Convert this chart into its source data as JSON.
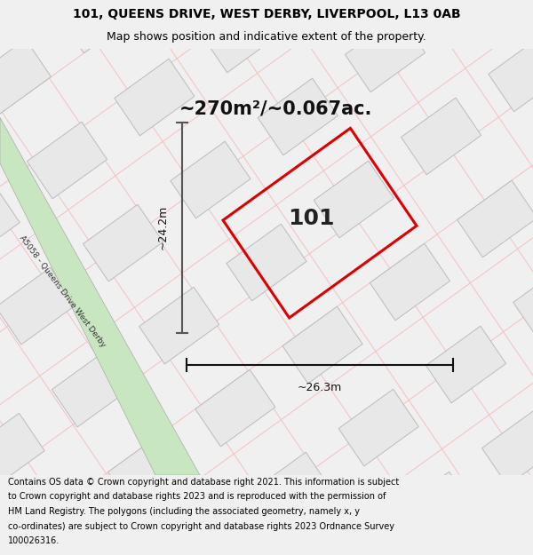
{
  "title_line1": "101, QUEENS DRIVE, WEST DERBY, LIVERPOOL, L13 0AB",
  "title_line2": "Map shows position and indicative extent of the property.",
  "area_label": "~270m²/~0.067ac.",
  "plot_number": "101",
  "dim_width": "~26.3m",
  "dim_height": "~24.2m",
  "road_label": "A5058 - Queens Drive West Derby",
  "footer_text": "Contains OS data © Crown copyright and database right 2021. This information is subject to Crown copyright and database rights 2023 and is reproduced with the permission of HM Land Registry. The polygons (including the associated geometry, namely x, y co-ordinates) are subject to Crown copyright and database rights 2023 Ordnance Survey 100026316.",
  "bg_color": "#f0f0f0",
  "map_bg": "#ffffff",
  "plot_fill": "#ffffff",
  "plot_border": "#dd0000",
  "building_fill": "#e8e8e8",
  "building_edge": "#bbbbbb",
  "grid_line_color": "#f5c0c0",
  "road_color": "#c8e6c0",
  "road_border": "#aaaaaa",
  "title_fontsize": 10,
  "subtitle_fontsize": 9,
  "area_fontsize": 15,
  "plot_num_fontsize": 18,
  "dim_fontsize": 9,
  "footer_fontsize": 7
}
